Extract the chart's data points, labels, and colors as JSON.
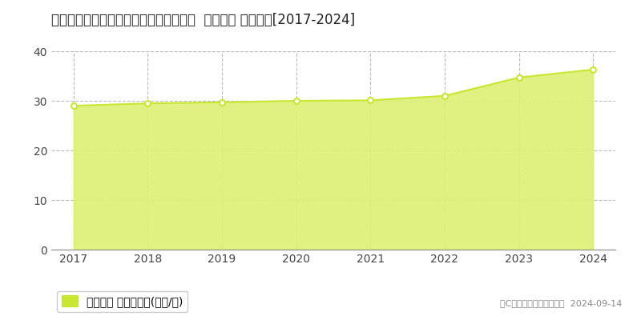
{
  "title": "愛知県東海市加木屋町東大堀２８番３７  地価公示 地価推移[2017-2024]",
  "years": [
    2017,
    2018,
    2019,
    2020,
    2021,
    2022,
    2023,
    2024
  ],
  "values": [
    29.0,
    29.5,
    29.7,
    30.0,
    30.1,
    31.0,
    34.7,
    36.3
  ],
  "ylim": [
    0,
    40
  ],
  "yticks": [
    0,
    10,
    20,
    30,
    40
  ],
  "line_color": "#c8e632",
  "fill_color": "#ddf075",
  "fill_alpha": 0.9,
  "marker_facecolor": "#ffffff",
  "marker_edge_color": "#c8e632",
  "grid_color": "#bbbbbb",
  "bg_color": "#ffffff",
  "legend_label": "地価公示 平均坪単価(万円/坪)",
  "legend_square_color": "#c8e632",
  "copyright_text": "（C）土地価格ドットコム  2024-09-14",
  "title_fontsize": 12,
  "axis_fontsize": 10,
  "legend_fontsize": 10
}
